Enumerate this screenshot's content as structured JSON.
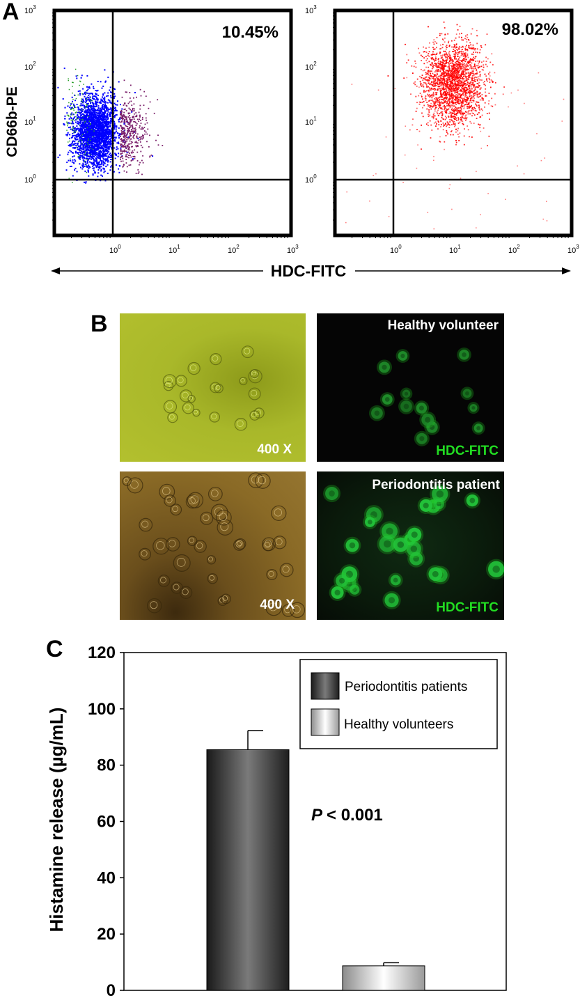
{
  "panel_labels": {
    "a": "A",
    "b": "B",
    "c": "C"
  },
  "flow": {
    "y_axis_label": "CD66b-PE",
    "x_axis_label": "HDC-FITC",
    "tick_base": "10",
    "decade_exponents": [
      "0",
      "1",
      "2",
      "3"
    ],
    "left_percent": "10.45%",
    "right_percent": "98.02%",
    "left_colors": [
      "#0000ff",
      "#7a1f6a",
      "#2aa02a"
    ],
    "right_color": "#ff0000"
  },
  "microscopy": {
    "healthy_label": "Healthy volunteer",
    "patient_label": "Periodontitis patient",
    "magnification": "400 X",
    "stain": "HDC-FITC",
    "stain_color": "#22dd22"
  },
  "chart_data": {
    "type": "bar",
    "categories": [
      "Periodontitis patients",
      "Healthy volunteers"
    ],
    "values": [
      85.5,
      8.7
    ],
    "errors": [
      6.8,
      1.1
    ],
    "ylabel": "Histamine release (µg/mL)",
    "ylim": [
      0,
      120
    ],
    "yticks": [
      "0",
      "20",
      "40",
      "60",
      "80",
      "100",
      "120"
    ],
    "legend": [
      "Periodontitis patients",
      "Healthy volunteers"
    ],
    "legend_position": "top-right",
    "annotation_p": "P",
    "annotation_rest": "< 0.001",
    "colors": {
      "patients": "#444444",
      "healthy": "#eeeeee"
    }
  }
}
